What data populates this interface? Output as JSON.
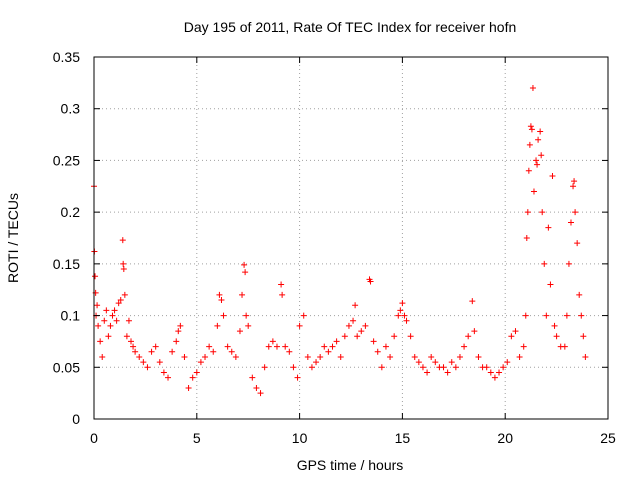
{
  "chart_data": {
    "type": "scatter",
    "title": "Day 195 of 2011, Rate Of TEC Index for receiver hofn",
    "xlabel": "GPS time / hours",
    "ylabel": "ROTI / TECUs",
    "xlim": [
      0,
      25
    ],
    "ylim": [
      0,
      0.35
    ],
    "xticks": [
      0,
      5,
      10,
      15,
      20,
      25
    ],
    "yticks": [
      0,
      0.05,
      0.1,
      0.15,
      0.2,
      0.25,
      0.3,
      0.35
    ],
    "xtick_labels": [
      "0",
      "5",
      "10",
      "15",
      "20",
      "25"
    ],
    "ytick_labels": [
      "0",
      "0.05",
      "0.1",
      "0.15",
      "0.2",
      "0.25",
      "0.3",
      "0.35"
    ],
    "grid": true,
    "marker": "+",
    "color": "#ff0000",
    "series": [
      {
        "points": [
          [
            0.0,
            0.225
          ],
          [
            0.02,
            0.162
          ],
          [
            0.05,
            0.138
          ],
          [
            0.08,
            0.122
          ],
          [
            0.1,
            0.1
          ],
          [
            0.15,
            0.11
          ],
          [
            0.2,
            0.09
          ],
          [
            0.3,
            0.075
          ],
          [
            0.4,
            0.06
          ],
          [
            0.5,
            0.095
          ],
          [
            0.6,
            0.105
          ],
          [
            0.7,
            0.08
          ],
          [
            0.8,
            0.09
          ],
          [
            0.9,
            0.1
          ],
          [
            1.0,
            0.105
          ],
          [
            1.1,
            0.095
          ],
          [
            1.2,
            0.112
          ],
          [
            1.3,
            0.115
          ],
          [
            1.4,
            0.173
          ],
          [
            1.42,
            0.15
          ],
          [
            1.45,
            0.145
          ],
          [
            1.5,
            0.12
          ],
          [
            1.6,
            0.08
          ],
          [
            1.7,
            0.095
          ],
          [
            1.8,
            0.075
          ],
          [
            1.9,
            0.07
          ],
          [
            2.0,
            0.065
          ],
          [
            2.2,
            0.06
          ],
          [
            2.4,
            0.055
          ],
          [
            2.6,
            0.05
          ],
          [
            2.8,
            0.065
          ],
          [
            3.0,
            0.07
          ],
          [
            3.2,
            0.055
          ],
          [
            3.4,
            0.045
          ],
          [
            3.6,
            0.04
          ],
          [
            3.8,
            0.065
          ],
          [
            4.0,
            0.075
          ],
          [
            4.1,
            0.085
          ],
          [
            4.2,
            0.09
          ],
          [
            4.4,
            0.06
          ],
          [
            4.6,
            0.03
          ],
          [
            4.8,
            0.04
          ],
          [
            5.0,
            0.045
          ],
          [
            5.2,
            0.055
          ],
          [
            5.4,
            0.06
          ],
          [
            5.6,
            0.07
          ],
          [
            5.8,
            0.065
          ],
          [
            6.0,
            0.09
          ],
          [
            6.1,
            0.12
          ],
          [
            6.2,
            0.115
          ],
          [
            6.3,
            0.1
          ],
          [
            6.5,
            0.07
          ],
          [
            6.7,
            0.065
          ],
          [
            6.9,
            0.06
          ],
          [
            7.1,
            0.085
          ],
          [
            7.2,
            0.12
          ],
          [
            7.3,
            0.149
          ],
          [
            7.35,
            0.142
          ],
          [
            7.4,
            0.1
          ],
          [
            7.5,
            0.09
          ],
          [
            7.7,
            0.04
          ],
          [
            7.9,
            0.03
          ],
          [
            8.1,
            0.025
          ],
          [
            8.3,
            0.05
          ],
          [
            8.5,
            0.07
          ],
          [
            8.7,
            0.075
          ],
          [
            8.9,
            0.07
          ],
          [
            9.1,
            0.13
          ],
          [
            9.15,
            0.12
          ],
          [
            9.3,
            0.07
          ],
          [
            9.5,
            0.065
          ],
          [
            9.7,
            0.05
          ],
          [
            9.9,
            0.04
          ],
          [
            10.0,
            0.09
          ],
          [
            10.2,
            0.1
          ],
          [
            10.4,
            0.06
          ],
          [
            10.6,
            0.05
          ],
          [
            10.8,
            0.055
          ],
          [
            11.0,
            0.06
          ],
          [
            11.2,
            0.07
          ],
          [
            11.4,
            0.065
          ],
          [
            11.6,
            0.07
          ],
          [
            11.8,
            0.075
          ],
          [
            12.0,
            0.06
          ],
          [
            12.2,
            0.08
          ],
          [
            12.4,
            0.09
          ],
          [
            12.6,
            0.095
          ],
          [
            12.7,
            0.11
          ],
          [
            12.8,
            0.08
          ],
          [
            13.0,
            0.085
          ],
          [
            13.2,
            0.09
          ],
          [
            13.4,
            0.135
          ],
          [
            13.45,
            0.133
          ],
          [
            13.6,
            0.075
          ],
          [
            13.8,
            0.065
          ],
          [
            14.0,
            0.05
          ],
          [
            14.2,
            0.07
          ],
          [
            14.4,
            0.06
          ],
          [
            14.6,
            0.08
          ],
          [
            14.8,
            0.1
          ],
          [
            14.9,
            0.105
          ],
          [
            15.0,
            0.112
          ],
          [
            15.1,
            0.1
          ],
          [
            15.2,
            0.095
          ],
          [
            15.4,
            0.08
          ],
          [
            15.6,
            0.06
          ],
          [
            15.8,
            0.055
          ],
          [
            16.0,
            0.05
          ],
          [
            16.2,
            0.045
          ],
          [
            16.4,
            0.06
          ],
          [
            16.6,
            0.055
          ],
          [
            16.8,
            0.05
          ],
          [
            17.0,
            0.05
          ],
          [
            17.2,
            0.045
          ],
          [
            17.4,
            0.055
          ],
          [
            17.6,
            0.05
          ],
          [
            17.8,
            0.06
          ],
          [
            18.0,
            0.07
          ],
          [
            18.2,
            0.08
          ],
          [
            18.4,
            0.114
          ],
          [
            18.5,
            0.085
          ],
          [
            18.7,
            0.06
          ],
          [
            18.9,
            0.05
          ],
          [
            19.1,
            0.05
          ],
          [
            19.3,
            0.045
          ],
          [
            19.5,
            0.04
          ],
          [
            19.7,
            0.045
          ],
          [
            19.9,
            0.05
          ],
          [
            20.1,
            0.055
          ],
          [
            20.3,
            0.08
          ],
          [
            20.5,
            0.085
          ],
          [
            20.7,
            0.06
          ],
          [
            20.9,
            0.07
          ],
          [
            21.0,
            0.1
          ],
          [
            21.05,
            0.175
          ],
          [
            21.1,
            0.2
          ],
          [
            21.15,
            0.24
          ],
          [
            21.2,
            0.265
          ],
          [
            21.25,
            0.283
          ],
          [
            21.3,
            0.28
          ],
          [
            21.35,
            0.32
          ],
          [
            21.4,
            0.22
          ],
          [
            21.5,
            0.25
          ],
          [
            21.55,
            0.246
          ],
          [
            21.6,
            0.27
          ],
          [
            21.7,
            0.278
          ],
          [
            21.75,
            0.255
          ],
          [
            21.8,
            0.2
          ],
          [
            21.9,
            0.15
          ],
          [
            22.0,
            0.1
          ],
          [
            22.1,
            0.185
          ],
          [
            22.2,
            0.13
          ],
          [
            22.3,
            0.235
          ],
          [
            22.4,
            0.09
          ],
          [
            22.5,
            0.08
          ],
          [
            22.7,
            0.07
          ],
          [
            22.9,
            0.07
          ],
          [
            23.0,
            0.1
          ],
          [
            23.1,
            0.15
          ],
          [
            23.2,
            0.19
          ],
          [
            23.3,
            0.225
          ],
          [
            23.35,
            0.23
          ],
          [
            23.4,
            0.2
          ],
          [
            23.5,
            0.17
          ],
          [
            23.6,
            0.12
          ],
          [
            23.7,
            0.1
          ],
          [
            23.8,
            0.08
          ],
          [
            23.9,
            0.06
          ]
        ]
      }
    ]
  }
}
